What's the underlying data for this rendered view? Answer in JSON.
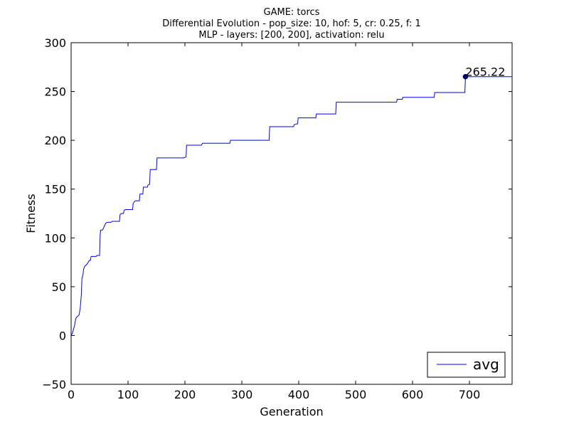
{
  "chart_data": {
    "type": "line",
    "title": [
      "GAME: torcs",
      "Differential Evolution - pop_size: 10, hof: 5, cr: 0.25, f: 1",
      "MLP - layers: [200, 200], activation: relu"
    ],
    "xlabel": "Generation",
    "ylabel": "Fitness",
    "xlim": [
      0,
      775
    ],
    "ylim": [
      -50,
      300
    ],
    "xticks": [
      0,
      100,
      200,
      300,
      400,
      500,
      600,
      700
    ],
    "yticks": [
      -50,
      0,
      50,
      100,
      150,
      200,
      250,
      300
    ],
    "grid": false,
    "legend": {
      "position": "bottom-right",
      "entries": [
        "avg"
      ]
    },
    "series": [
      {
        "name": "avg",
        "color": "#0000ff",
        "points": [
          [
            0,
            0
          ],
          [
            2,
            2
          ],
          [
            4,
            6
          ],
          [
            6,
            10
          ],
          [
            8,
            17
          ],
          [
            10,
            19
          ],
          [
            12,
            20
          ],
          [
            14,
            21
          ],
          [
            16,
            28
          ],
          [
            18,
            42
          ],
          [
            19,
            58
          ],
          [
            21,
            63
          ],
          [
            22,
            68
          ],
          [
            24,
            71
          ],
          [
            26,
            72
          ],
          [
            28,
            73
          ],
          [
            30,
            75
          ],
          [
            32,
            77
          ],
          [
            34,
            77
          ],
          [
            35,
            81
          ],
          [
            40,
            81
          ],
          [
            44,
            81
          ],
          [
            45,
            82
          ],
          [
            49,
            82
          ],
          [
            50,
            82
          ],
          [
            51,
            103
          ],
          [
            52,
            108
          ],
          [
            55,
            108
          ],
          [
            57,
            110
          ],
          [
            59,
            113
          ],
          [
            61,
            115
          ],
          [
            63,
            116
          ],
          [
            70,
            116
          ],
          [
            72,
            117
          ],
          [
            85,
            117
          ],
          [
            86,
            124
          ],
          [
            88,
            125
          ],
          [
            92,
            125
          ],
          [
            93,
            128
          ],
          [
            95,
            129
          ],
          [
            108,
            129
          ],
          [
            109,
            135
          ],
          [
            111,
            137
          ],
          [
            113,
            138
          ],
          [
            120,
            138
          ],
          [
            121,
            145
          ],
          [
            126,
            145
          ],
          [
            127,
            152
          ],
          [
            134,
            152
          ],
          [
            135,
            154
          ],
          [
            138,
            155
          ],
          [
            139,
            170
          ],
          [
            148,
            170
          ],
          [
            150,
            170
          ],
          [
            151,
            182
          ],
          [
            198,
            182
          ],
          [
            202,
            183
          ],
          [
            203,
            195
          ],
          [
            229,
            195
          ],
          [
            231,
            197
          ],
          [
            279,
            197
          ],
          [
            280,
            200
          ],
          [
            348,
            200
          ],
          [
            349,
            214
          ],
          [
            391,
            214
          ],
          [
            392,
            216
          ],
          [
            398,
            217
          ],
          [
            399,
            223
          ],
          [
            430,
            223
          ],
          [
            431,
            227
          ],
          [
            465,
            227
          ],
          [
            466,
            239
          ],
          [
            572,
            239
          ],
          [
            573,
            242
          ],
          [
            582,
            242
          ],
          [
            583,
            244
          ],
          [
            638,
            244
          ],
          [
            639,
            249
          ],
          [
            692,
            249
          ],
          [
            693,
            264
          ],
          [
            695,
            265.22
          ],
          [
            775,
            265.22
          ]
        ]
      }
    ],
    "annotations": [
      {
        "text": "265.22",
        "x": 693,
        "y": 265.22
      }
    ]
  }
}
